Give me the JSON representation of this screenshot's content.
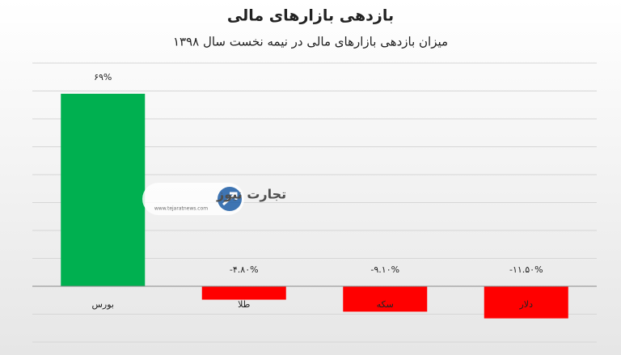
{
  "chart_data": {
    "type": "bar",
    "title": "بازدهی بازارهای مالی",
    "subtitle": "میزان بازدهی بازارهای مالی در نیمه نخست سال ۱۳۹۸",
    "categories": [
      "بورس",
      "طلا",
      "سکه",
      "دلار"
    ],
    "values": [
      69,
      -4.8,
      -9.1,
      -11.5
    ],
    "value_labels": [
      "۶۹%",
      "-۴.۸۰%",
      "-۹.۱۰%",
      "-۱۱.۵۰%"
    ],
    "colors": [
      "#00b050",
      "#ff0000",
      "#ff0000",
      "#ff0000"
    ],
    "ylim": [
      -20,
      80
    ],
    "yticks": [
      -20,
      -10,
      0,
      10,
      20,
      30,
      40,
      50,
      60,
      70,
      80
    ],
    "grid": true,
    "watermark": {
      "name": "تجارت نیوز",
      "url": "www.tejaratnews.com"
    }
  }
}
